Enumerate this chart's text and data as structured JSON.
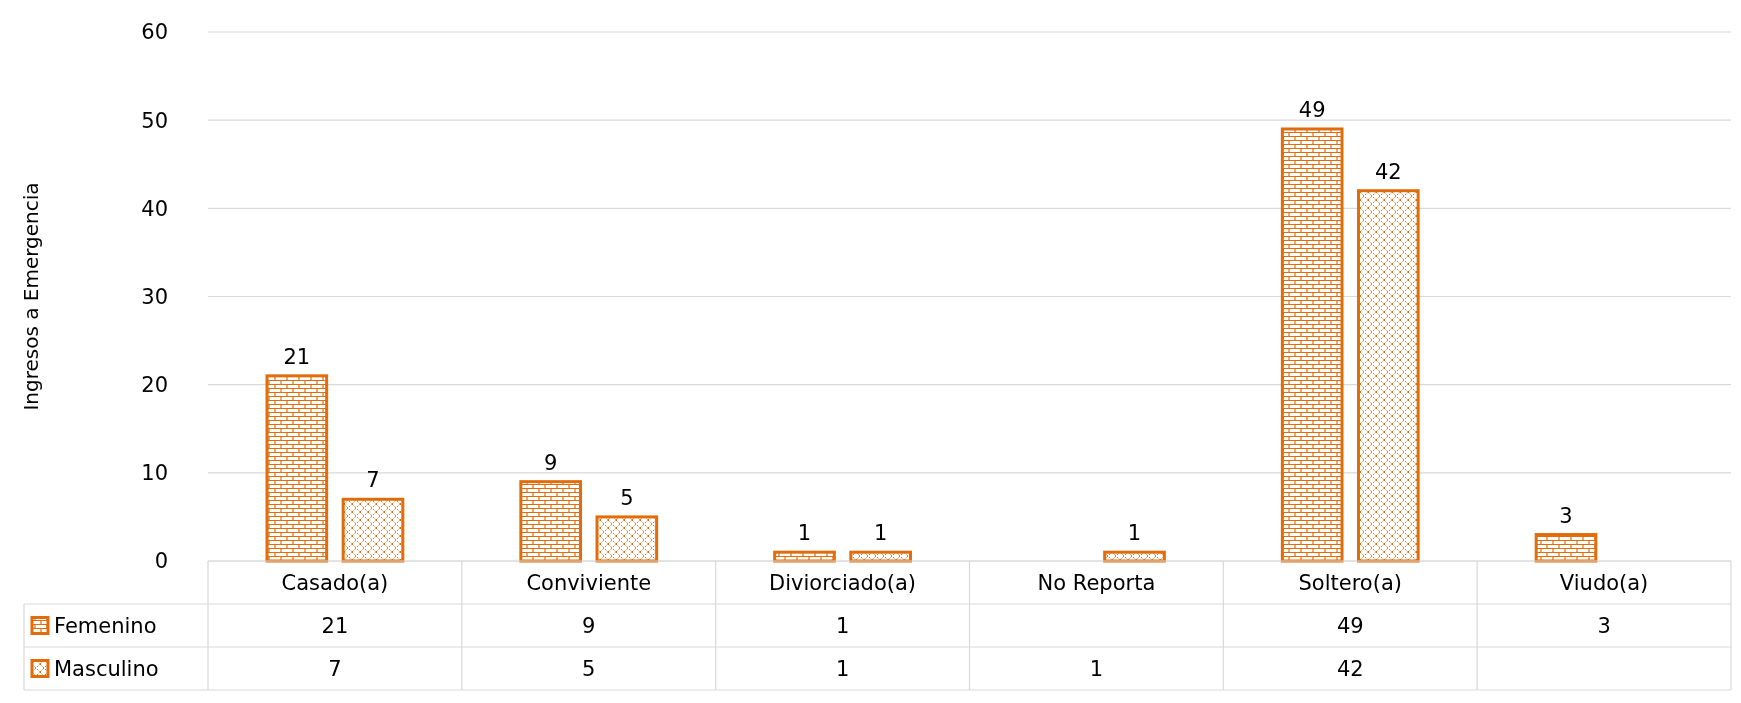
{
  "chart_data": {
    "type": "bar",
    "ylabel": "Ingresos a Emergencia",
    "categories": [
      "Casado(a)",
      "Conviviente",
      "Diviorciado(a)",
      "No Reporta",
      "Soltero(a)",
      "Viudo(a)"
    ],
    "series": [
      {
        "name": "Femenino",
        "color": "#e36c0a",
        "values": [
          21,
          9,
          1,
          null,
          49,
          3
        ]
      },
      {
        "name": "Masculino",
        "color": "#e36c0a",
        "values": [
          7,
          5,
          1,
          1,
          42,
          null
        ]
      }
    ],
    "annotations": [
      "21",
      "7",
      "9",
      "5",
      "1",
      "1",
      "1",
      "49",
      "42",
      "3"
    ],
    "ylim": [
      0,
      60
    ],
    "yticks": [
      0,
      10,
      20,
      30,
      40,
      50,
      60
    ],
    "grid": "y",
    "data_labels": true,
    "legend": "bottom"
  }
}
